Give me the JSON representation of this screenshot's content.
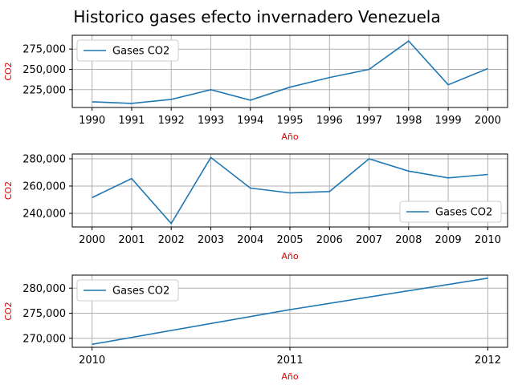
{
  "figure_title": "Historico gases efecto invernadero Venezuela",
  "colors": {
    "series": "#1f77b4",
    "axis_label": "#e00000",
    "grid": "#b0b0b0"
  },
  "chart_data": [
    {
      "type": "line",
      "x": [
        1990,
        1991,
        1992,
        1993,
        1994,
        1995,
        1996,
        1997,
        1998,
        1999,
        2000
      ],
      "series": [
        {
          "name": "Gases CO2",
          "values": [
            210000,
            208000,
            213000,
            225000,
            212000,
            228000,
            240000,
            250000,
            285000,
            231000,
            251000
          ]
        }
      ],
      "xticks": [
        "1990",
        "1991",
        "1992",
        "1993",
        "1994",
        "1995",
        "1996",
        "1997",
        "1998",
        "1999",
        "2000"
      ],
      "yticks": [
        "225,000",
        "250,000",
        "275,000"
      ],
      "ytick_values": [
        225000,
        250000,
        275000
      ],
      "xlabel": "Año",
      "ylabel": "CO2",
      "xlim": [
        1989.5,
        2000.5
      ],
      "ylim": [
        203000,
        292000
      ],
      "grid": true,
      "legend": "upper left"
    },
    {
      "type": "line",
      "x": [
        2000,
        2001,
        2002,
        2003,
        2004,
        2005,
        2006,
        2007,
        2008,
        2009,
        2010
      ],
      "series": [
        {
          "name": "Gases CO2",
          "values": [
            251500,
            265500,
            232500,
            281000,
            258500,
            255000,
            256000,
            280000,
            271000,
            266000,
            268500
          ]
        }
      ],
      "xticks": [
        "2000",
        "2001",
        "2002",
        "2003",
        "2004",
        "2005",
        "2006",
        "2007",
        "2008",
        "2009",
        "2010"
      ],
      "yticks": [
        "240,000",
        "260,000",
        "280,000"
      ],
      "ytick_values": [
        240000,
        260000,
        280000
      ],
      "xlabel": "Año",
      "ylabel": "CO2",
      "xlim": [
        1999.5,
        2010.5
      ],
      "ylim": [
        230000,
        283500
      ],
      "grid": true,
      "legend": "lower right"
    },
    {
      "type": "line",
      "x": [
        2010,
        2011,
        2012
      ],
      "series": [
        {
          "name": "Gases CO2",
          "values": [
            268800,
            275700,
            282000
          ]
        }
      ],
      "xticks": [
        "2010",
        "2011",
        "2012"
      ],
      "yticks": [
        "270,000",
        "275,000",
        "280,000"
      ],
      "ytick_values": [
        270000,
        275000,
        280000
      ],
      "xlabel": "Año",
      "ylabel": "CO2",
      "xlim": [
        2009.9,
        2012.1
      ],
      "ylim": [
        268200,
        282600
      ],
      "grid": true,
      "legend": "upper left"
    }
  ]
}
